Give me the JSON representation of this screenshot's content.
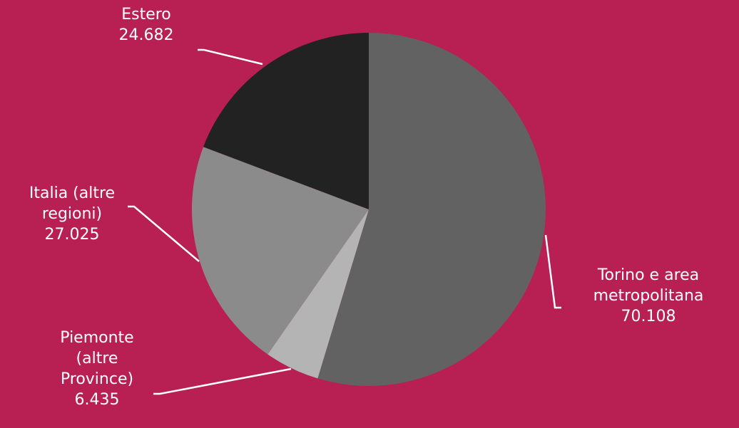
{
  "colors": {
    "background": "#b81f52",
    "leader_line": "#ffffff",
    "label_text": "#ffffff"
  },
  "chart_data": {
    "type": "pie",
    "title": "",
    "start_angle_deg": 0,
    "direction": "clockwise",
    "slices": [
      {
        "label_lines": [
          "Torino e area",
          "metropolitana"
        ],
        "value": 70108,
        "value_label": "70.108",
        "color": "#626262"
      },
      {
        "label_lines": [
          "Piemonte",
          "(altre",
          "Province)"
        ],
        "value": 6435,
        "value_label": "6.435",
        "color": "#b4b4b4"
      },
      {
        "label_lines": [
          "Italia (altre",
          "regioni)"
        ],
        "value": 27025,
        "value_label": "27.025",
        "color": "#8b8b8b"
      },
      {
        "label_lines": [
          "Estero"
        ],
        "value": 24682,
        "value_label": "24.682",
        "color": "#222222"
      }
    ]
  }
}
